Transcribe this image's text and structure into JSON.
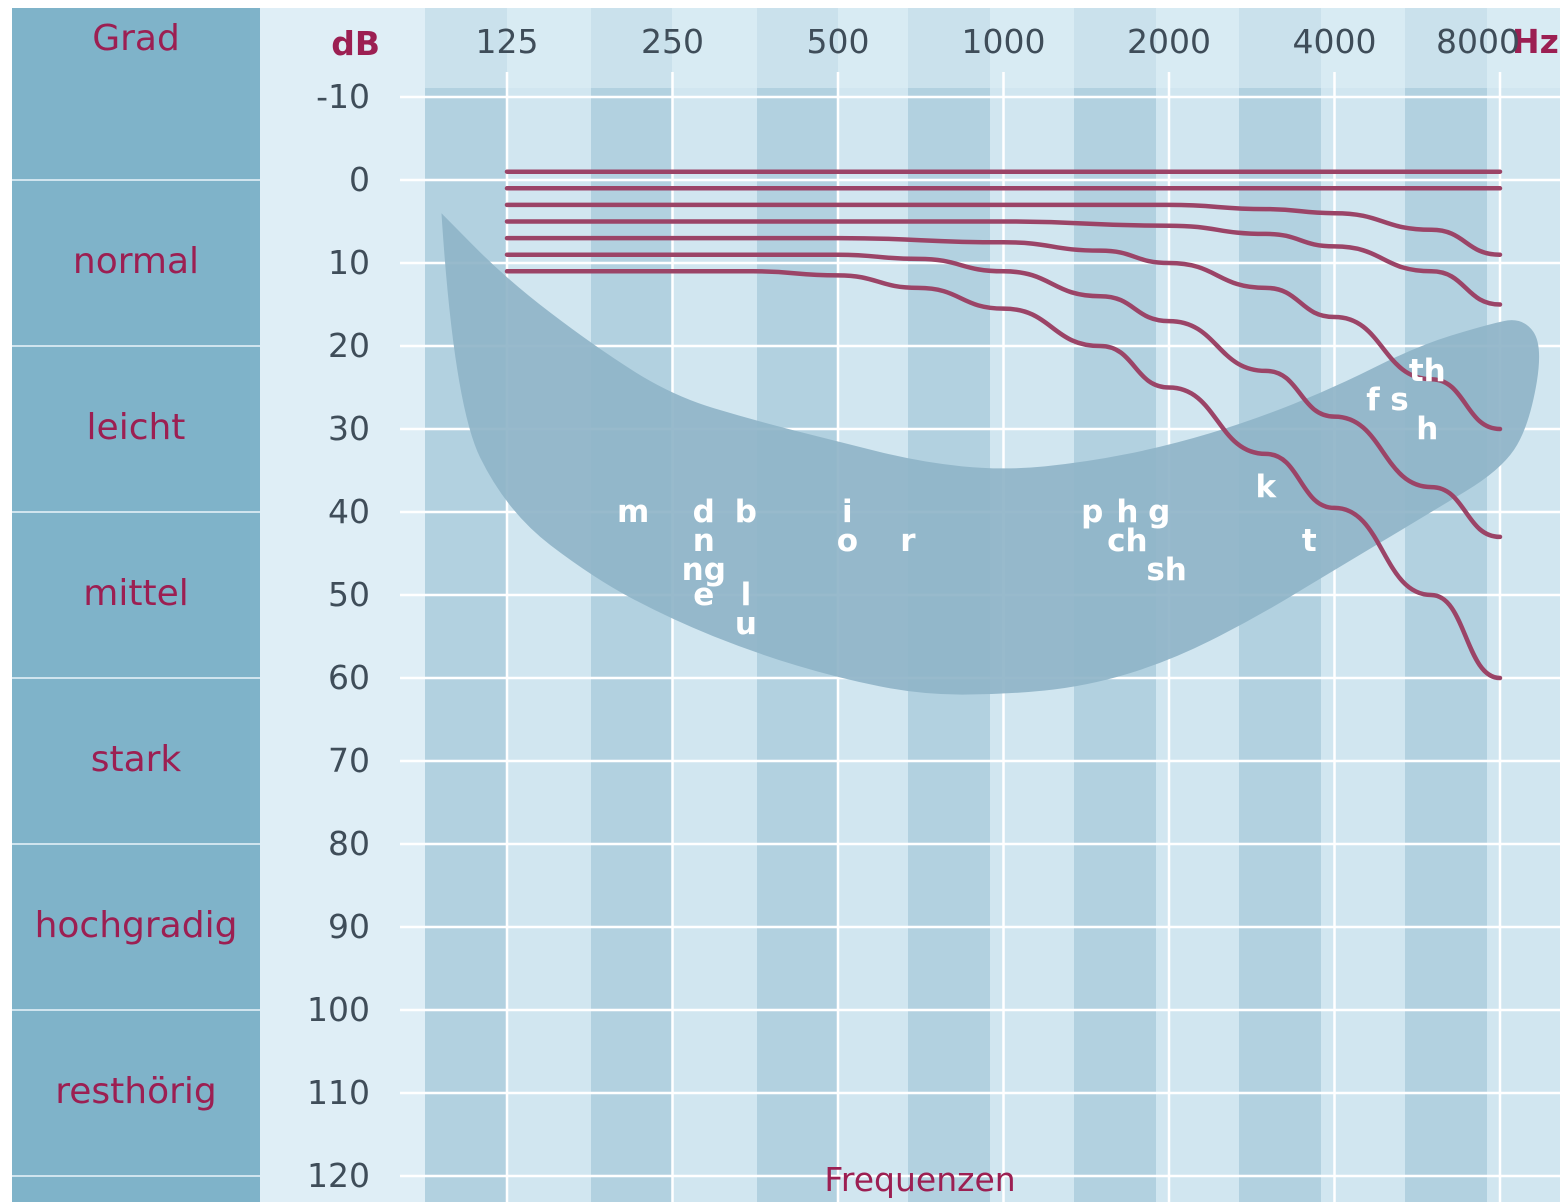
{
  "header": {
    "grade": "Grad",
    "unit_y": "dB",
    "unit_x": "Hz"
  },
  "grades": [
    {
      "label": "normal",
      "from": 0,
      "to": 20
    },
    {
      "label": "leicht",
      "from": 20,
      "to": 40
    },
    {
      "label": "mittel",
      "from": 40,
      "to": 60
    },
    {
      "label": "stark",
      "from": 60,
      "to": 80
    },
    {
      "label": "hochgradig",
      "from": 80,
      "to": 100
    },
    {
      "label": "resthörig",
      "from": 100,
      "to": 120
    }
  ],
  "colors": {
    "left_panel": "#7fb3c9",
    "plot_bg": "#dfeef6",
    "band_light": "#d1e6f0",
    "band_dark": "#b2d1e0",
    "grid": "#ffffff",
    "banana": "#8fb4c8",
    "curve": "#9b4467",
    "label_text": "#9c1f52",
    "tick_text": "#3f4d59"
  },
  "chart_data": {
    "type": "line",
    "xlabel": "Frequenzen",
    "ylabel": "dB",
    "x_scale": "log",
    "x_ticks": [
      "125",
      "250",
      "500",
      "1000",
      "2000",
      "4000",
      "8000"
    ],
    "y_ticks": [
      "-10",
      "0",
      "10",
      "20",
      "30",
      "40",
      "50",
      "60",
      "70",
      "80",
      "90",
      "100",
      "110",
      "120"
    ],
    "ylim": [
      -10,
      120
    ],
    "y_inverted": true,
    "xlim": [
      125,
      8000
    ],
    "series": [
      {
        "x": [
          125,
          250,
          500,
          1000,
          2000,
          4000,
          8000
        ],
        "y": [
          -1,
          -1,
          -1,
          -1,
          -1,
          -1,
          -1
        ]
      },
      {
        "x": [
          125,
          250,
          500,
          1000,
          2000,
          4000,
          8000
        ],
        "y": [
          1,
          1,
          1,
          1,
          1,
          1,
          1
        ]
      },
      {
        "x": [
          125,
          250,
          500,
          1000,
          2000,
          3000,
          4000,
          6000,
          8000
        ],
        "y": [
          3,
          3,
          3,
          3,
          3,
          3.5,
          4,
          6,
          9
        ]
      },
      {
        "x": [
          125,
          250,
          500,
          1000,
          2000,
          3000,
          4000,
          6000,
          8000
        ],
        "y": [
          5,
          5,
          5,
          5,
          5.5,
          6.5,
          8,
          11,
          15
        ]
      },
      {
        "x": [
          125,
          250,
          500,
          1000,
          1500,
          2000,
          3000,
          4000,
          6000,
          8000
        ],
        "y": [
          7,
          7,
          7,
          7.5,
          8.5,
          10,
          13,
          16.5,
          24,
          30
        ]
      },
      {
        "x": [
          125,
          250,
          500,
          700,
          1000,
          1500,
          2000,
          3000,
          4000,
          6000,
          8000
        ],
        "y": [
          9,
          9,
          9,
          9.5,
          11,
          14,
          17,
          23,
          28.5,
          37,
          43
        ]
      },
      {
        "x": [
          125,
          250,
          350,
          500,
          700,
          1000,
          1500,
          2000,
          3000,
          4000,
          6000,
          8000
        ],
        "y": [
          11,
          11,
          11,
          11.5,
          13,
          15.5,
          20,
          25,
          33,
          39.5,
          50,
          60
        ]
      }
    ],
    "speech_banana": {
      "upper": [
        [
          95,
          4
        ],
        [
          125,
          12
        ],
        [
          180,
          20
        ],
        [
          250,
          26
        ],
        [
          354,
          29
        ],
        [
          500,
          31.5
        ],
        [
          707,
          34
        ],
        [
          1000,
          35
        ],
        [
          1414,
          34
        ],
        [
          2000,
          32
        ],
        [
          2828,
          29
        ],
        [
          4000,
          25
        ],
        [
          5657,
          20
        ],
        [
          7500,
          17.5
        ],
        [
          8800,
          16.5
        ]
      ],
      "lower": [
        [
          9600,
          20
        ],
        [
          9000,
          30
        ],
        [
          8000,
          35
        ],
        [
          6000,
          40
        ],
        [
          4000,
          47
        ],
        [
          2828,
          53
        ],
        [
          2000,
          58
        ],
        [
          1414,
          61
        ],
        [
          1000,
          62
        ],
        [
          707,
          62
        ],
        [
          500,
          60
        ],
        [
          354,
          57
        ],
        [
          250,
          53
        ],
        [
          180,
          48
        ],
        [
          125,
          40
        ],
        [
          100,
          27
        ]
      ]
    },
    "phonemes": [
      {
        "t": "m",
        "x": 212,
        "y": 40
      },
      {
        "t": "d",
        "x": 285,
        "y": 40
      },
      {
        "t": "b",
        "x": 340,
        "y": 40
      },
      {
        "t": "n",
        "x": 285,
        "y": 43.5
      },
      {
        "t": "ng",
        "x": 285,
        "y": 47
      },
      {
        "t": "e",
        "x": 285,
        "y": 50
      },
      {
        "t": "l",
        "x": 340,
        "y": 50
      },
      {
        "t": "u",
        "x": 340,
        "y": 53.5
      },
      {
        "t": "i",
        "x": 520,
        "y": 40
      },
      {
        "t": "o",
        "x": 520,
        "y": 43.5
      },
      {
        "t": "r",
        "x": 670,
        "y": 43.5
      },
      {
        "t": "p",
        "x": 1450,
        "y": 40
      },
      {
        "t": "h",
        "x": 1680,
        "y": 40
      },
      {
        "t": "g",
        "x": 1920,
        "y": 40
      },
      {
        "t": "ch",
        "x": 1680,
        "y": 43.5
      },
      {
        "t": "sh",
        "x": 1980,
        "y": 47
      },
      {
        "t": "k",
        "x": 3000,
        "y": 37
      },
      {
        "t": "t",
        "x": 3600,
        "y": 43.5
      },
      {
        "t": "f",
        "x": 4700,
        "y": 26.5
      },
      {
        "t": "s",
        "x": 5250,
        "y": 26.5
      },
      {
        "t": "th",
        "x": 5900,
        "y": 23
      },
      {
        "t": "h",
        "x": 5900,
        "y": 30
      }
    ]
  }
}
